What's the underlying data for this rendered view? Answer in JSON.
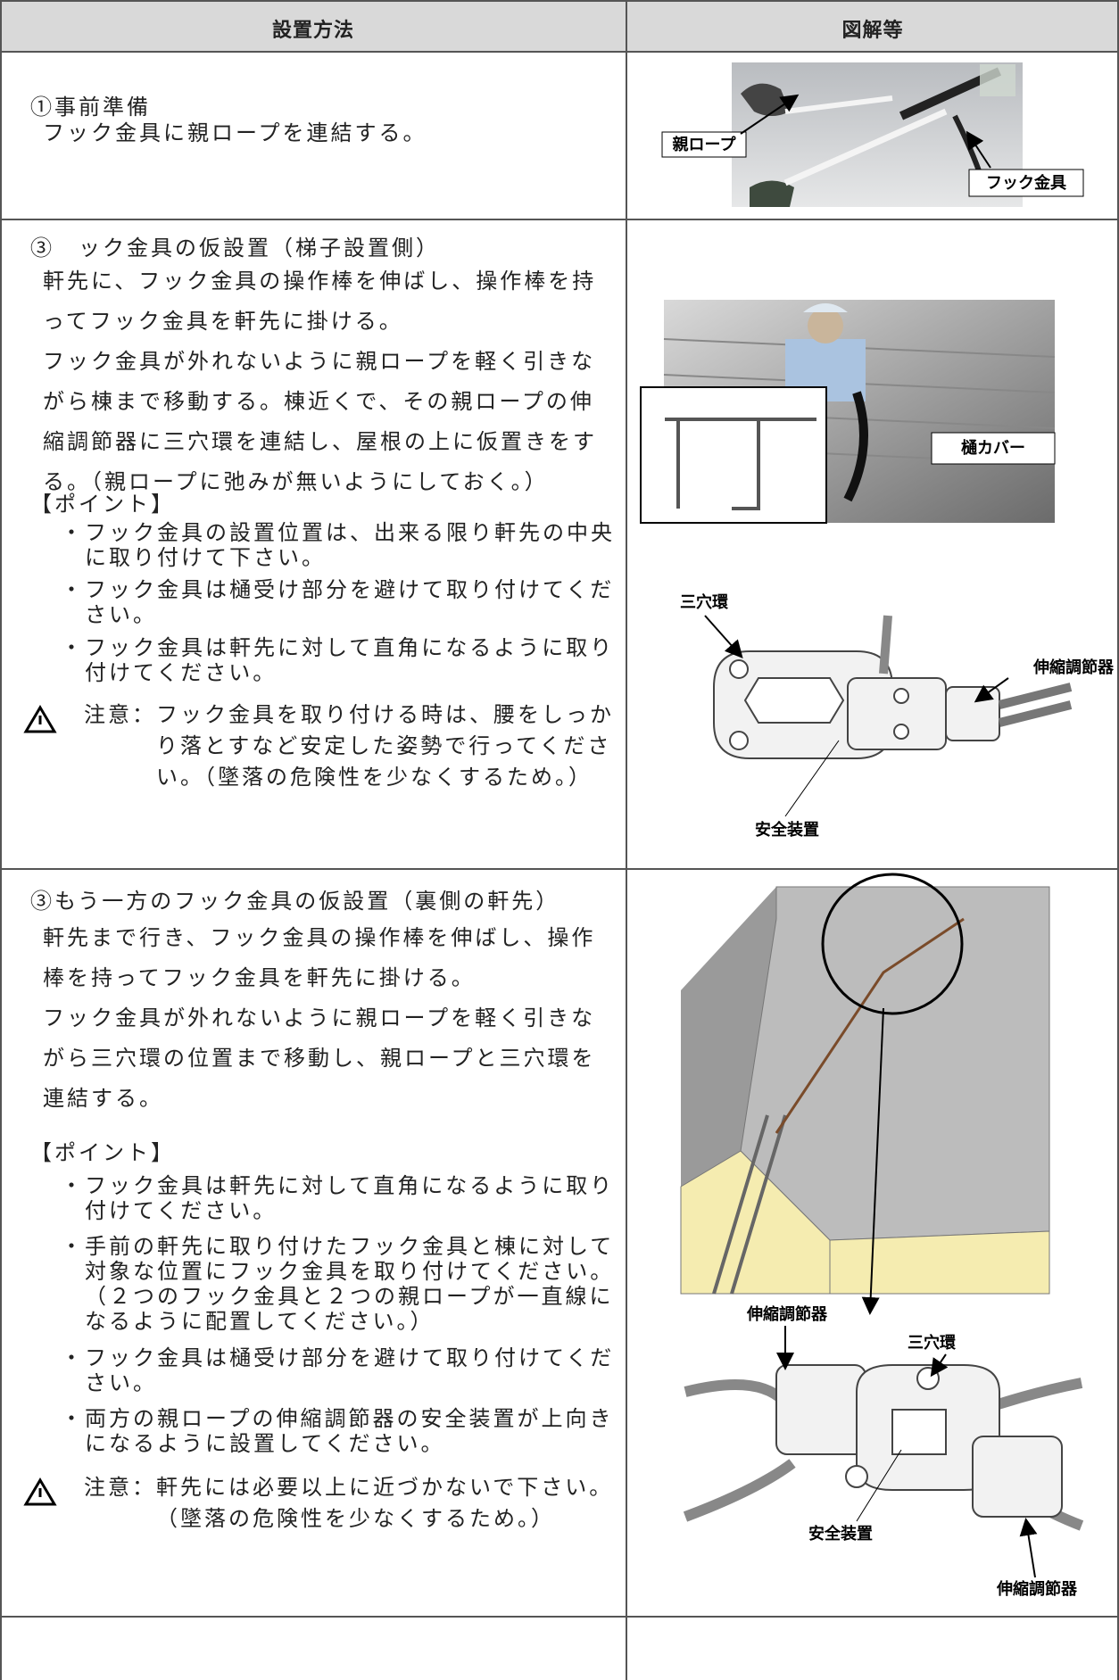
{
  "table": {
    "headers": [
      "設置方法",
      "図解等"
    ],
    "rows": [
      {
        "method": {
          "title": "①事前準備",
          "paragraphs": [
            "フック金具に親ロープを連結する。"
          ]
        },
        "figure": {
          "labels": [
            "親ロープ",
            "フック金具"
          ]
        }
      },
      {
        "method": {
          "title": "③　ック金具の仮設置（梯子設置側）",
          "paragraphs": [
            "軒先に、フック金具の操作棒を伸ばし、操作棒を持ってフック金具を軒先に掛ける。",
            "フック金具が外れないように親ロープを軽く引きながら棟まで移動する。棟近くで、その親ロープの伸縮調節器に三穴環を連結し、屋根の上に仮置きをする。（親ロープに弛みが無いようにしておく。）"
          ],
          "point": "【ポイント】",
          "bullets": [
            "・フック金具の設置位置は、出来る限り軒先の中央に取り付けて下さい。",
            "・フック金具は樋受け部分を避けて取り付けてください。",
            "・フック金具は軒先に対して直角になるように取り付けてください。"
          ],
          "caution": {
            "label": "注意：",
            "text": "フック金具を取り付ける時は、腰をしっかり落とすなど安定した姿勢で行ってください。（墜落の危険性を少なくするため。）"
          }
        },
        "figure": {
          "labels": [
            "樋カバー",
            "三穴環",
            "伸縮調節器",
            "安全装置"
          ]
        }
      },
      {
        "method": {
          "title": "③もう一方のフック金具の仮設置（裏側の軒先）",
          "paragraphs": [
            "軒先まで行き、フック金具の操作棒を伸ばし、操作棒を持ってフック金具を軒先に掛ける。",
            "フック金具が外れないように親ロープを軽く引きながら三穴環の位置まで移動し、親ロープと三穴環を連結する。"
          ],
          "point": "【ポイント】",
          "bullets": [
            "・フック金具は軒先に対して直角になるように取り付けてください。",
            "・手前の軒先に取り付けたフック金具と棟に対して対象な位置にフック金具を取り付けてください。\n（２つのフック金具と２つの親ロープが一直線になるように配置してください。）",
            "・フック金具は樋受け部分を避けて取り付けてください。",
            "・両方の親ロープの伸縮調節器の安全装置が上向きになるように設置してください。"
          ],
          "caution": {
            "label": "注意：",
            "text": "軒先には必要以上に近づかないで下さい。\n（墜落の危険性を少なくするため。）"
          }
        },
        "figure": {
          "labels": [
            "伸縮調節器",
            "三穴環",
            "安全装置",
            "伸縮調節器"
          ]
        }
      }
    ]
  }
}
